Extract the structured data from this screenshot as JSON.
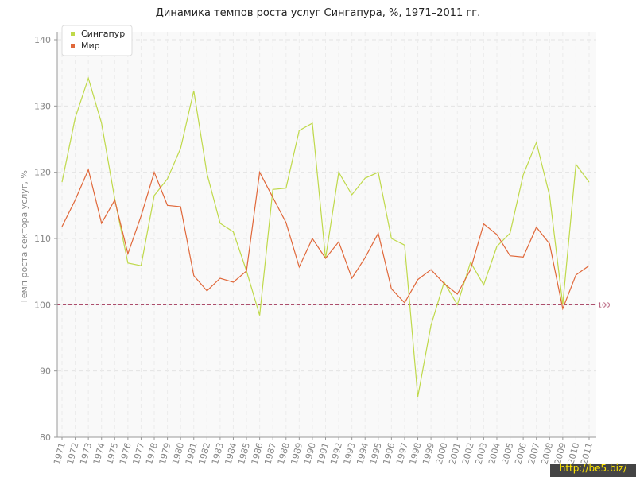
{
  "chart_data": {
    "type": "line",
    "title": "Динамика темпов роста услуг Сингапура, %, 1971–2011 гг.",
    "y_label": "Темп роста сектора услуг, %",
    "categories": [
      "1971",
      "1972",
      "1973",
      "1974",
      "1975",
      "1976",
      "1977",
      "1978",
      "1979",
      "1980",
      "1981",
      "1982",
      "1983",
      "1984",
      "1985",
      "1986",
      "1987",
      "1988",
      "1989",
      "1990",
      "1991",
      "1992",
      "1993",
      "1994",
      "1995",
      "1996",
      "1997",
      "1998",
      "1999",
      "2000",
      "2001",
      "2002",
      "2003",
      "2004",
      "2005",
      "2006",
      "2007",
      "2008",
      "2009",
      "2010",
      "2011"
    ],
    "series": [
      {
        "name": "Сингапур",
        "color": "#bfd94a",
        "values": [
          118.5,
          128.2,
          134.2,
          127.4,
          116,
          106.3,
          105.9,
          116.5,
          119,
          123.6,
          132.3,
          119.8,
          112.3,
          111,
          105.1,
          98.4,
          117.4,
          117.6,
          126.3,
          127.4,
          107,
          120,
          116.6,
          119.1,
          120,
          110,
          109,
          86.1,
          96.9,
          103.4,
          100,
          106.4,
          103,
          108.8,
          110.8,
          119.6,
          124.5,
          116.5,
          100,
          121.2,
          118.5
        ]
      },
      {
        "name": "Мир",
        "color": "#e0683a",
        "values": [
          111.8,
          115.8,
          120.4,
          112.3,
          115.8,
          107.7,
          113.4,
          120,
          115,
          114.8,
          104.4,
          102.1,
          104,
          103.4,
          105.1,
          120,
          116.2,
          112.4,
          105.7,
          110,
          107,
          109.5,
          104,
          107.1,
          110.8,
          102.4,
          100.3,
          103.8,
          105.3,
          103.2,
          101.6,
          105.3,
          112.2,
          110.6,
          107.4,
          107.2,
          111.7,
          109.2,
          99.4,
          104.5,
          105.9
        ]
      }
    ],
    "reference_line": 100,
    "ylim": [
      80,
      140
    ],
    "yticks": [
      80,
      90,
      100,
      110,
      120,
      130,
      140
    ],
    "grid": true,
    "legend": "top-left",
    "watermark": "http://be5.biz/"
  }
}
